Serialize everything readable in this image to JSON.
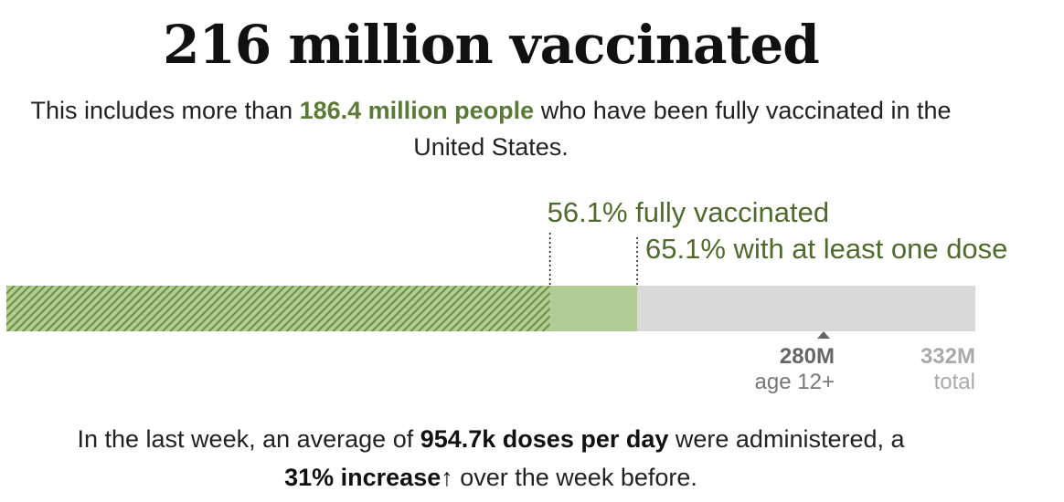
{
  "header": {
    "title": "216 million vaccinated",
    "subtitle_before": "This includes more than ",
    "subtitle_highlight": "186.4 million people",
    "subtitle_after": " who have been fully vaccinated in the United States."
  },
  "chart_data": {
    "type": "bar",
    "orientation": "horizontal-stacked",
    "unit": "people",
    "total_max": 332,
    "series": [
      {
        "name": "fully vaccinated",
        "percent": 56.1,
        "label": "56.1% fully vaccinated",
        "color": "#6b8f3e",
        "pattern": "hatched"
      },
      {
        "name": "with at least one dose",
        "percent": 65.1,
        "label": "65.1% with at least one dose",
        "color": "#b3cc95",
        "pattern": "solid"
      }
    ],
    "remainder_color": "#d9d9d9",
    "markers": [
      {
        "value": 280,
        "label": "280M",
        "sublabel": "age 12+",
        "color": "#666666",
        "arrow": true
      },
      {
        "value": 332,
        "label": "332M",
        "sublabel": "total",
        "color": "#aaaaaa",
        "arrow": false
      }
    ]
  },
  "footer": {
    "line1_before": "In the last week, an average of ",
    "line1_bold": "954.7k doses per day",
    "line1_after": " were administered, a",
    "line2_bold": "31% increase",
    "line2_arrow": "↑",
    "line2_after": " over the week before."
  },
  "colors": {
    "accent_green": "#5b7a35",
    "fully_vaccinated": "#6b8f3e",
    "one_dose": "#b3cc95",
    "remainder": "#d9d9d9"
  }
}
